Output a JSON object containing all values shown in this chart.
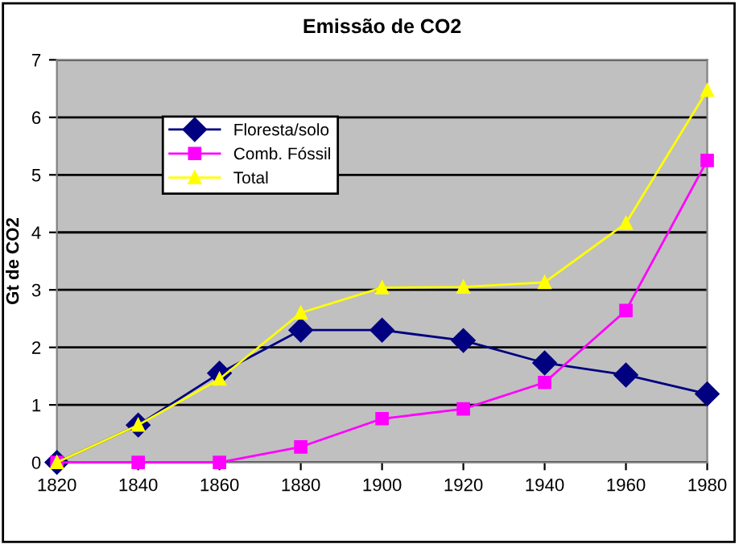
{
  "chart_data": {
    "type": "line",
    "title": "Emissão de CO2",
    "ylabel": "Gt de CO2",
    "x": [
      1820,
      1840,
      1860,
      1880,
      1900,
      1920,
      1940,
      1960,
      1980
    ],
    "xlim": [
      1820,
      1980
    ],
    "xticks": [
      1820,
      1840,
      1860,
      1880,
      1900,
      1920,
      1940,
      1960,
      1980
    ],
    "ylim": [
      0,
      7
    ],
    "yticks": [
      0,
      1,
      2,
      3,
      4,
      5,
      6,
      7
    ],
    "grid": "y",
    "legend": "top left",
    "series": [
      {
        "name": "Floresta/solo",
        "color": "#000080",
        "marker": "diamond",
        "values": [
          0,
          0.65,
          1.55,
          2.3,
          2.3,
          2.12,
          1.73,
          1.52,
          1.19
        ]
      },
      {
        "name": "Comb. Fóssil",
        "color": "#ff00ff",
        "marker": "square",
        "values": [
          0,
          0,
          0,
          0.27,
          0.76,
          0.93,
          1.39,
          2.64,
          5.25
        ]
      },
      {
        "name": "Total",
        "color": "#ffff00",
        "marker": "triangle",
        "values": [
          0,
          0.65,
          1.45,
          2.6,
          3.04,
          3.05,
          3.13,
          4.16,
          6.47
        ]
      }
    ]
  }
}
